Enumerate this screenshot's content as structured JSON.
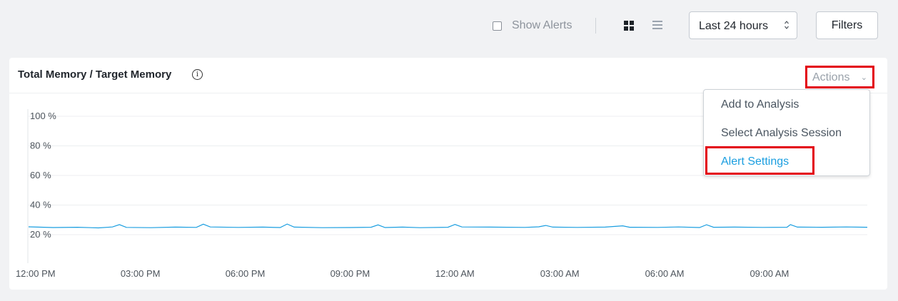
{
  "toolbar": {
    "show_alerts_label": "Show Alerts",
    "show_alerts_checked": false,
    "time_range": "Last 24 hours",
    "filters_label": "Filters"
  },
  "panel": {
    "title": "Total Memory / Target Memory",
    "info_icon": "i",
    "actions_label": "Actions",
    "actions_chevron": "⌄"
  },
  "actions_menu": {
    "items": [
      "Add to Analysis",
      "Select Analysis Session",
      "Alert Settings"
    ],
    "highlighted_item": "Alert Settings"
  },
  "colors": {
    "line": "#1a9ee0",
    "highlight_border": "#e3000f",
    "active_menu_item": "#1a9ee0"
  },
  "chart_data": {
    "type": "line",
    "title": "Total Memory / Target Memory",
    "y_tick_labels": [
      "100 %",
      "80 %",
      "60 %",
      "40 %",
      "20 %"
    ],
    "y_ticks": [
      100,
      80,
      60,
      40,
      20
    ],
    "x_tick_labels": [
      "12:00 PM",
      "03:00 PM",
      "06:00 PM",
      "09:00 PM",
      "12:00 AM",
      "03:00 AM",
      "06:00 AM",
      "09:00 AM"
    ],
    "x_range_hours": [
      -0.2,
      23.8
    ],
    "ylim": [
      15,
      105
    ],
    "grid": true,
    "series": [
      {
        "values": [
          [
            -0.2,
            25.3
          ],
          [
            0.5,
            24.8
          ],
          [
            1.2,
            25.0
          ],
          [
            1.8,
            24.6
          ],
          [
            2.2,
            25.2
          ],
          [
            2.4,
            26.8
          ],
          [
            2.6,
            24.9
          ],
          [
            3.3,
            24.7
          ],
          [
            4.0,
            25.1
          ],
          [
            4.6,
            24.9
          ],
          [
            4.8,
            27.1
          ],
          [
            5.0,
            25.2
          ],
          [
            5.8,
            24.9
          ],
          [
            6.5,
            25.1
          ],
          [
            7.0,
            24.8
          ],
          [
            7.2,
            27.2
          ],
          [
            7.4,
            25.1
          ],
          [
            8.2,
            24.7
          ],
          [
            9.0,
            24.8
          ],
          [
            9.6,
            25.0
          ],
          [
            9.8,
            26.6
          ],
          [
            10.0,
            24.8
          ],
          [
            10.5,
            25.1
          ],
          [
            11.0,
            24.7
          ],
          [
            11.8,
            25.0
          ],
          [
            12.0,
            26.9
          ],
          [
            12.2,
            25.2
          ],
          [
            13.0,
            25.1
          ],
          [
            14.0,
            24.9
          ],
          [
            14.4,
            25.3
          ],
          [
            14.6,
            26.2
          ],
          [
            14.8,
            25.1
          ],
          [
            15.5,
            24.9
          ],
          [
            16.3,
            25.1
          ],
          [
            16.8,
            26.0
          ],
          [
            17.0,
            25.0
          ],
          [
            17.8,
            24.9
          ],
          [
            18.4,
            25.2
          ],
          [
            19.0,
            24.8
          ],
          [
            19.2,
            26.7
          ],
          [
            19.4,
            25.0
          ],
          [
            20.0,
            25.1
          ],
          [
            20.8,
            24.9
          ],
          [
            21.5,
            25.0
          ],
          [
            21.6,
            26.8
          ],
          [
            21.8,
            25.1
          ],
          [
            22.5,
            25.0
          ],
          [
            23.2,
            25.2
          ],
          [
            23.8,
            25.0
          ]
        ]
      }
    ]
  }
}
